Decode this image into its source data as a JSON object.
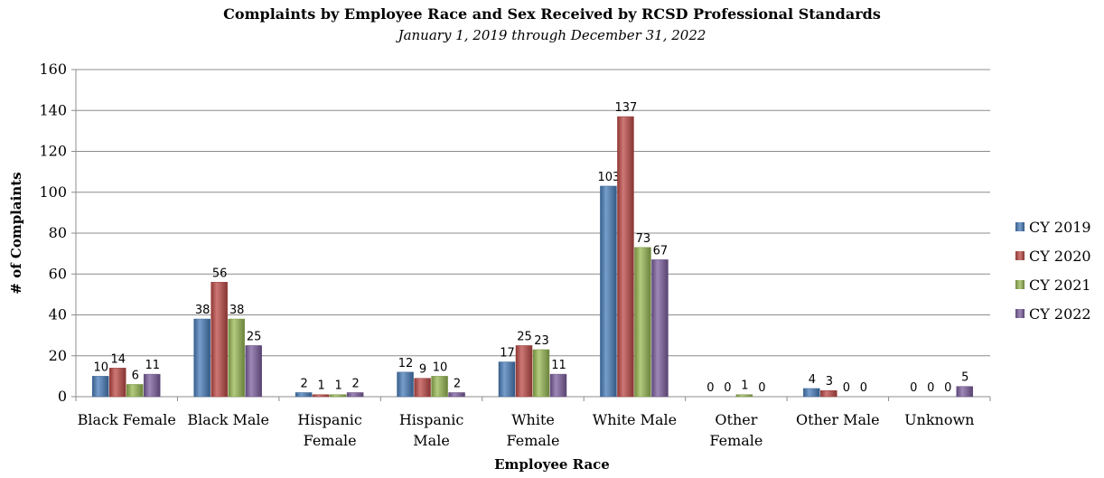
{
  "chart_data": {
    "type": "bar",
    "title": "Complaints by Employee Race and Sex Received by RCSD Professional Standards",
    "subtitle": "January 1, 2019 through December 31, 2022",
    "xlabel": "Employee Race",
    "ylabel": "# of Complaints",
    "ylim": [
      0,
      160
    ],
    "yticks": [
      0,
      20,
      40,
      60,
      80,
      100,
      120,
      140,
      160
    ],
    "grid": true,
    "legend_position": "right",
    "categories": [
      [
        "Black Female"
      ],
      [
        "Black Male"
      ],
      [
        "Hispanic",
        "Female"
      ],
      [
        "Hispanic",
        "Male"
      ],
      [
        "White",
        "Female"
      ],
      [
        "White Male"
      ],
      [
        "Other",
        "Female"
      ],
      [
        "Other Male"
      ],
      [
        "Unknown"
      ]
    ],
    "series": [
      {
        "name": "CY 2019",
        "color": "#4a7ebb",
        "values": [
          10,
          38,
          2,
          12,
          17,
          103,
          0,
          4,
          0
        ]
      },
      {
        "name": "CY 2020",
        "color": "#be4b48",
        "values": [
          14,
          56,
          1,
          9,
          25,
          137,
          0,
          3,
          0
        ]
      },
      {
        "name": "CY 2021",
        "color": "#98b954",
        "values": [
          6,
          38,
          1,
          10,
          23,
          73,
          1,
          0,
          0
        ]
      },
      {
        "name": "CY 2022",
        "color": "#7d60a0",
        "values": [
          11,
          25,
          2,
          2,
          11,
          67,
          0,
          0,
          5
        ]
      }
    ]
  }
}
